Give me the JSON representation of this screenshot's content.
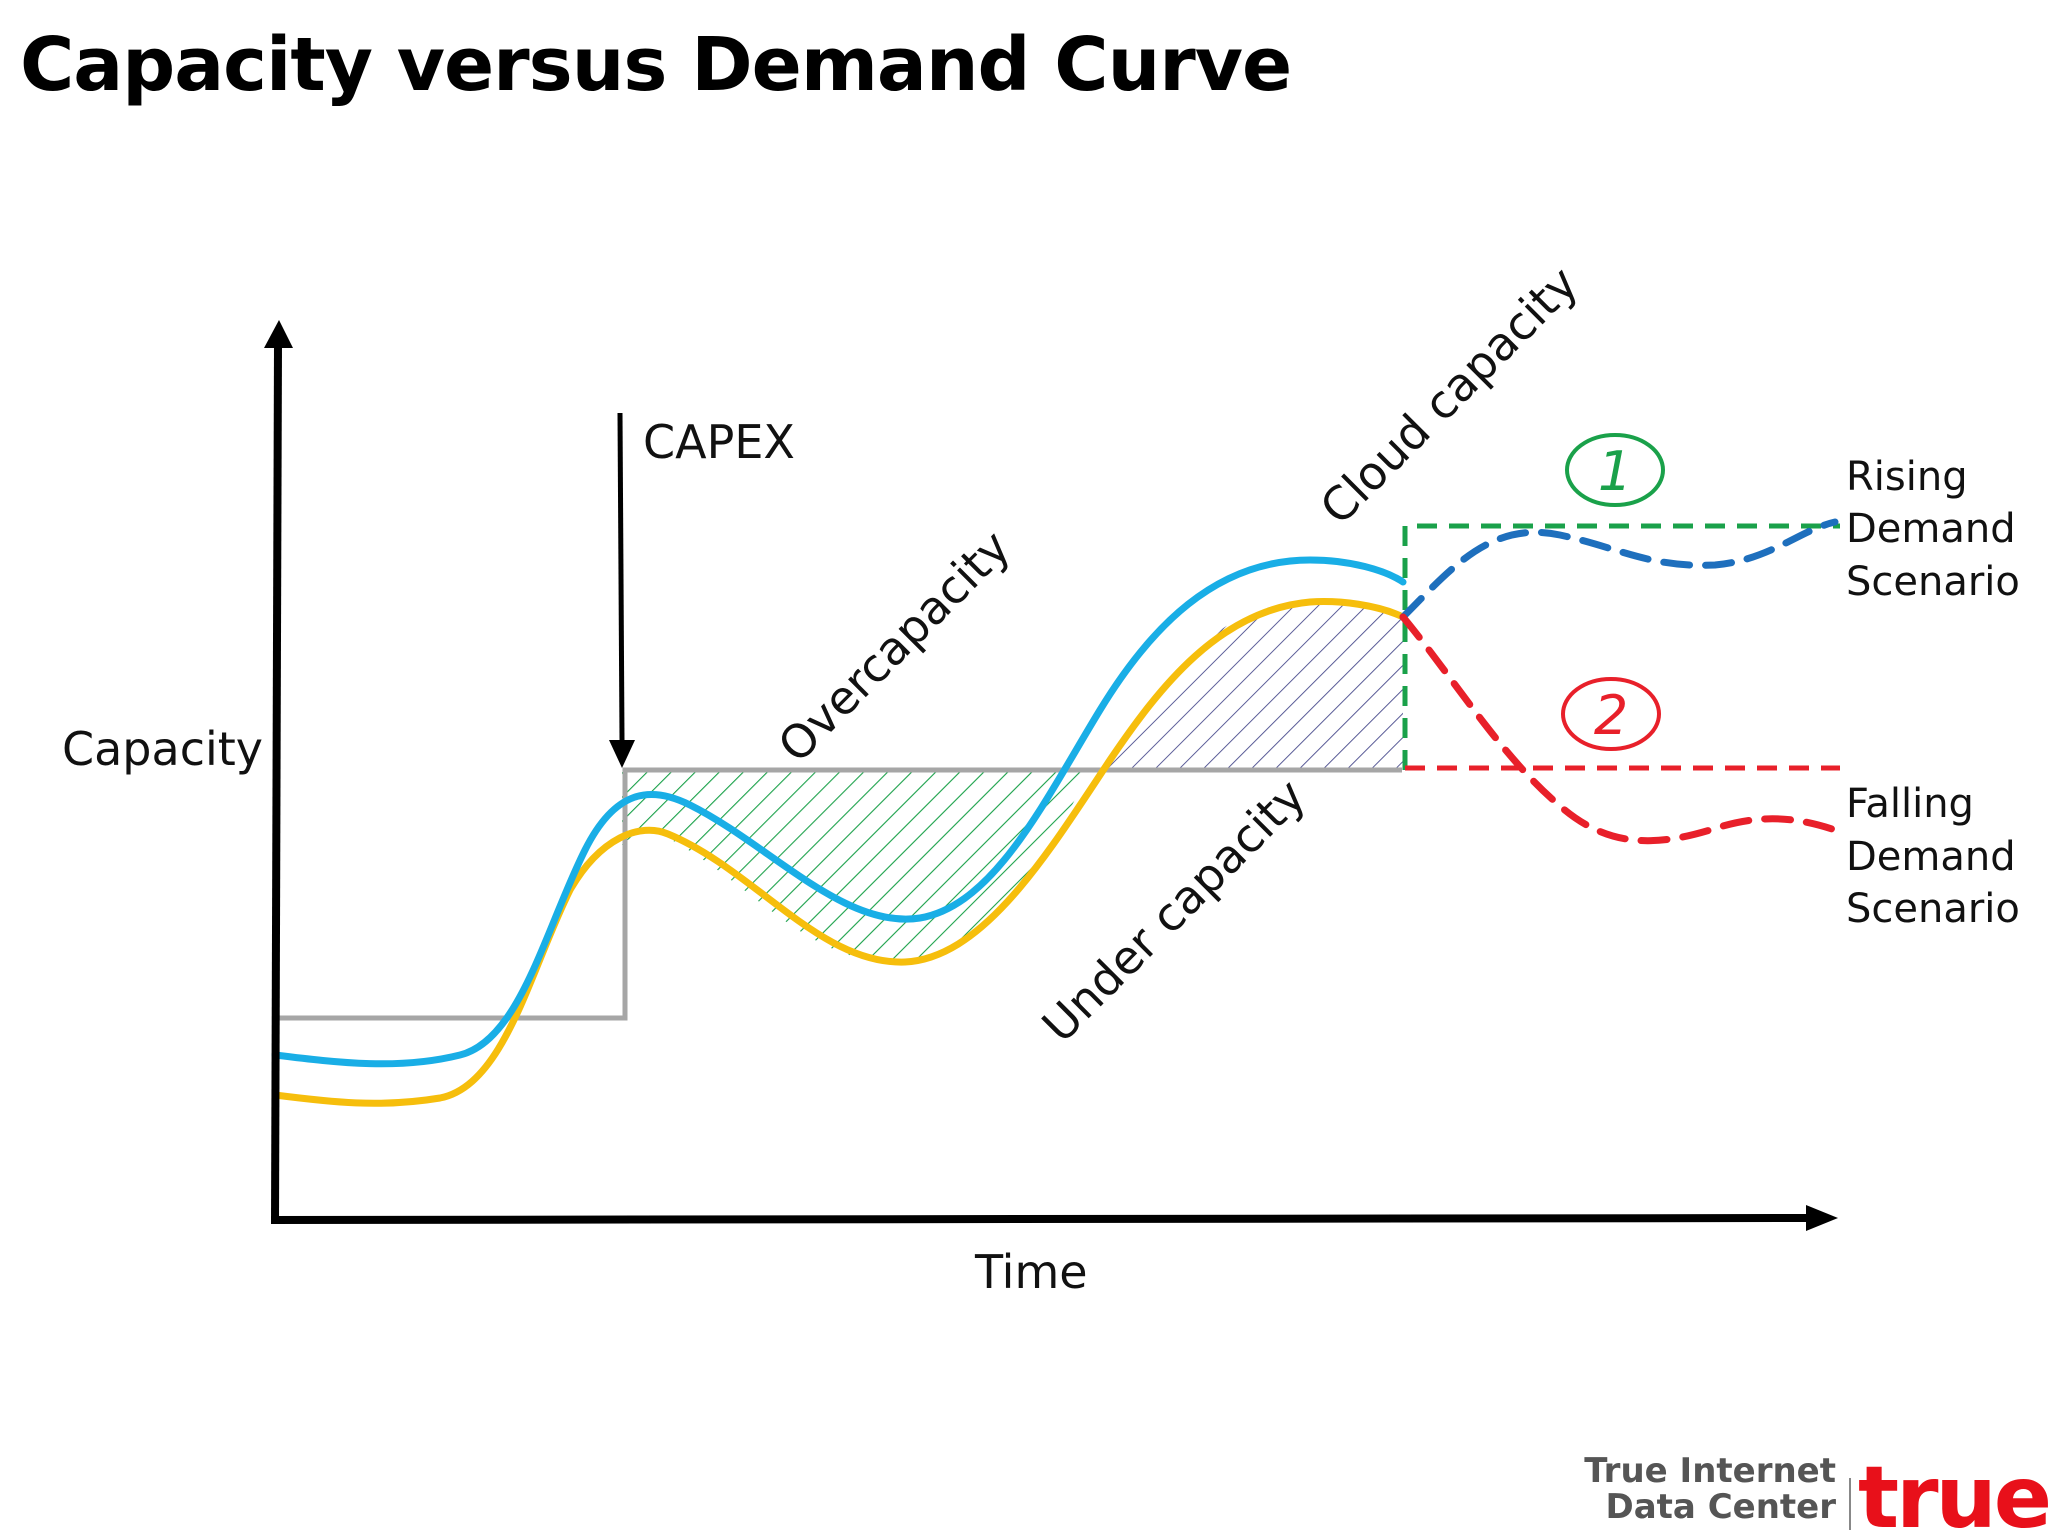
{
  "slide": {
    "title": "Capacity versus Demand Curve"
  },
  "diagram": {
    "y_axis_label": "Capacity",
    "x_axis_label": "Time",
    "capex_label": "CAPEX",
    "overcapacity_label": "Overcapacity",
    "undercapacity_label": "Under capacity",
    "cloud_capacity_label": "Cloud capacity",
    "scenarios": [
      {
        "number": "1",
        "color": "#1aa14a",
        "lines": [
          "Rising",
          "Demand",
          "Scenario"
        ]
      },
      {
        "number": "2",
        "color": "#e8202a",
        "lines": [
          "Falling",
          "Demand",
          "Scenario"
        ]
      }
    ],
    "colors": {
      "capacity_curve": "#19aee6",
      "demand_curve": "#f6be0c",
      "fixed_capacity": "#a6a6a6",
      "overcapacity_hatch": "#1aa14a",
      "undercapacity_hatch": "#5b5d98",
      "rising_dashed": "#1e6fbd",
      "falling_dashed": "#e8202a",
      "axis": "#000000"
    }
  },
  "logo": {
    "company_line1": "True Internet",
    "company_line2": "Data Center",
    "brand": "true",
    "brand_color": "#e8101a"
  }
}
